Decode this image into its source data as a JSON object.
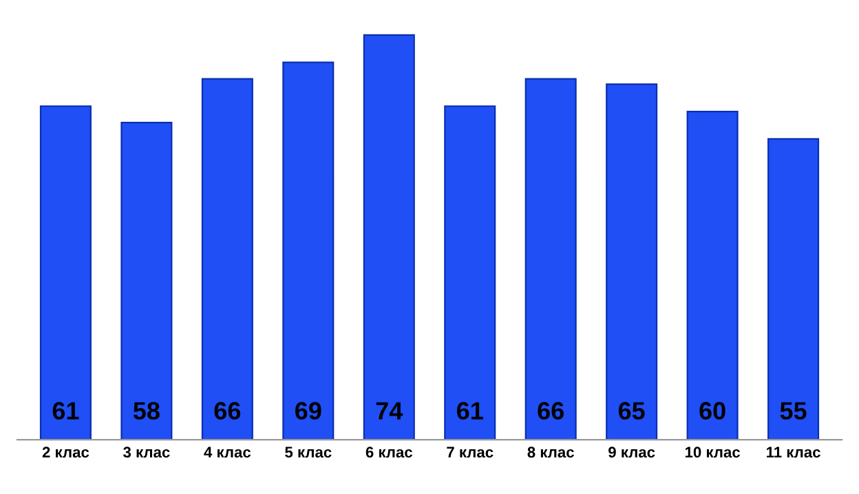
{
  "chart_data": {
    "type": "bar",
    "categories": [
      "2 клас",
      "3 клас",
      "4 клас",
      "5 клас",
      "6 клас",
      "7 клас",
      "8 клас",
      "9 клас",
      "10 клас",
      "11 клас"
    ],
    "values": [
      61,
      58,
      66,
      69,
      74,
      61,
      66,
      65,
      60,
      55
    ],
    "color": "#1f4ff5",
    "data_labels": true
  }
}
